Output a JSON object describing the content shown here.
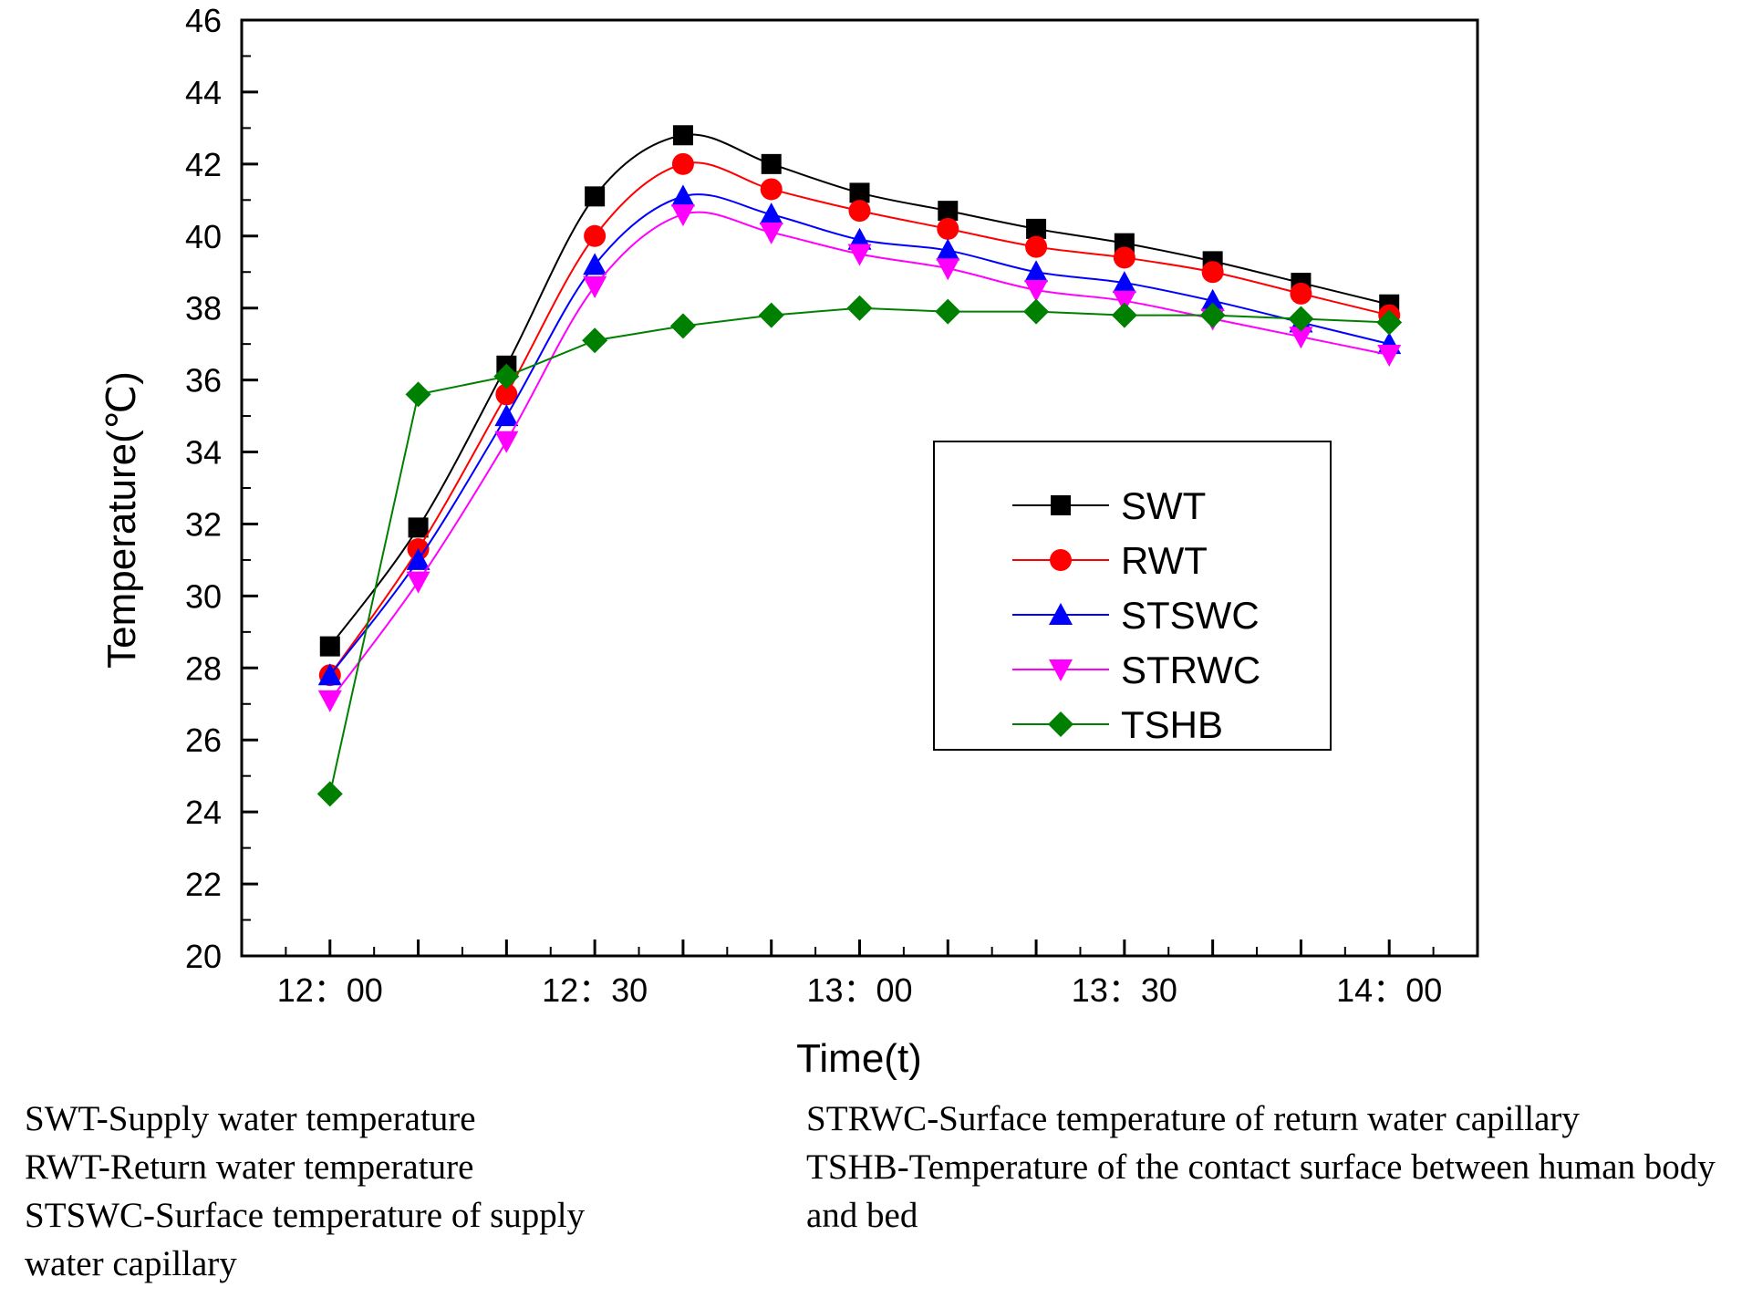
{
  "chart_data": {
    "type": "line",
    "title": "",
    "xlabel": "Time(t)",
    "ylabel": "Temperature(℃)",
    "ylim": [
      20,
      46
    ],
    "yticks": [
      20,
      22,
      24,
      26,
      28,
      30,
      32,
      34,
      36,
      38,
      40,
      42,
      44,
      46
    ],
    "xlim": [
      -1,
      13
    ],
    "xticks": [
      0,
      1,
      2,
      3,
      4,
      5,
      6,
      7,
      8,
      9,
      10,
      11,
      12
    ],
    "xtick_labels": [
      {
        "x": 0,
        "label": "12：00"
      },
      {
        "x": 3,
        "label": "12：30"
      },
      {
        "x": 6,
        "label": "13：00"
      },
      {
        "x": 9,
        "label": "13：30"
      },
      {
        "x": 12,
        "label": "14：00"
      }
    ],
    "x": [
      0,
      1,
      2,
      3,
      4,
      5,
      6,
      7,
      8,
      9,
      10,
      11,
      12
    ],
    "grid": false,
    "legend_position": "center-right",
    "series": [
      {
        "name": "SWT",
        "color": "#000000",
        "marker": "square",
        "values": [
          28.6,
          31.9,
          36.4,
          41.1,
          42.8,
          42.0,
          41.2,
          40.7,
          40.2,
          39.8,
          39.3,
          38.7,
          38.1
        ]
      },
      {
        "name": "RWT",
        "color": "#ff0000",
        "marker": "circle",
        "values": [
          27.8,
          31.3,
          35.6,
          40.0,
          42.0,
          41.3,
          40.7,
          40.2,
          39.7,
          39.4,
          39.0,
          38.4,
          37.8
        ]
      },
      {
        "name": "STSWC",
        "color": "#0000ff",
        "marker": "triangle-up",
        "values": [
          27.8,
          31.0,
          35.0,
          39.2,
          41.1,
          40.6,
          39.9,
          39.6,
          39.0,
          38.7,
          38.2,
          37.6,
          37.0
        ]
      },
      {
        "name": "STRWC",
        "color": "#ff00ff",
        "marker": "triangle-down",
        "values": [
          27.1,
          30.4,
          34.3,
          38.6,
          40.6,
          40.1,
          39.5,
          39.1,
          38.5,
          38.2,
          37.7,
          37.2,
          36.7
        ]
      },
      {
        "name": "TSHB",
        "color": "#008000",
        "marker": "diamond",
        "values": [
          24.5,
          35.6,
          36.1,
          37.1,
          37.5,
          37.8,
          38.0,
          37.9,
          37.9,
          37.8,
          37.8,
          37.7,
          37.6
        ]
      }
    ]
  },
  "notes": {
    "left": [
      "SWT-Supply water temperature",
      "RWT-Return water temperature",
      "STSWC-Surface temperature of supply water capillary"
    ],
    "right": [
      "STRWC-Surface temperature of return water capillary",
      "TSHB-Temperature of the contact surface between human body and bed"
    ]
  }
}
